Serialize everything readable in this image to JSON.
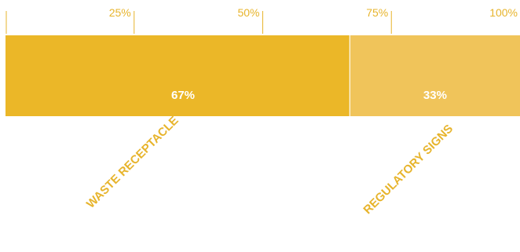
{
  "chart_data": {
    "type": "bar",
    "orientation": "horizontal-stacked",
    "categories": [
      "WASTE RECEPTACLE",
      "REGULATORY SIGNS"
    ],
    "values": [
      67,
      33
    ],
    "value_labels": [
      "67%",
      "33%"
    ],
    "xlim": [
      0,
      100
    ],
    "ticks": [
      {
        "value": 25,
        "label": "25%"
      },
      {
        "value": 50,
        "label": "50%"
      },
      {
        "value": 75,
        "label": "75%"
      },
      {
        "value": 100,
        "label": "100%"
      }
    ],
    "colors": [
      "#ebb728",
      "#f0c45a"
    ],
    "tick_color": "#e7b42c",
    "label_color": "#e7b42c",
    "grid": false,
    "legend": "none"
  }
}
